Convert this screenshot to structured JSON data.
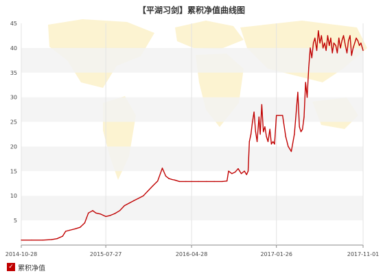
{
  "chart_data": {
    "type": "line",
    "title": "【平湖习剑】累积净值曲线图",
    "xlabel": "",
    "ylabel": "",
    "ylim": [
      0,
      45
    ],
    "y_ticks": [
      5,
      10,
      15,
      20,
      25,
      30,
      35,
      40,
      45
    ],
    "x_ticks": [
      "2014-10-28",
      "2015-07-27",
      "2016-04-28",
      "2017-01-26",
      "2017-11-01"
    ],
    "grid": "alternating horizontal bands",
    "legend_position": "bottom-left",
    "series": [
      {
        "name": "累积净值",
        "color": "#c00000",
        "x": [
          "2014-10-28",
          "2014-12-01",
          "2015-01-05",
          "2015-02-02",
          "2015-02-20",
          "2015-03-10",
          "2015-03-20",
          "2015-04-01",
          "2015-04-20",
          "2015-05-05",
          "2015-05-20",
          "2015-06-01",
          "2015-06-15",
          "2015-06-25",
          "2015-07-10",
          "2015-07-27",
          "2015-08-10",
          "2015-08-25",
          "2015-09-10",
          "2015-09-25",
          "2015-10-10",
          "2015-10-25",
          "2015-11-10",
          "2015-11-25",
          "2015-12-10",
          "2015-12-25",
          "2016-01-10",
          "2016-01-25",
          "2016-02-05",
          "2016-02-15",
          "2016-02-25",
          "2016-03-05",
          "2016-03-20",
          "2016-04-10",
          "2016-04-28",
          "2016-05-20",
          "2016-06-15",
          "2016-07-10",
          "2016-08-05",
          "2016-08-20",
          "2016-08-25",
          "2016-09-05",
          "2016-09-15",
          "2016-09-25",
          "2016-10-05",
          "2016-10-15",
          "2016-10-22",
          "2016-10-27",
          "2016-10-31",
          "2016-11-05",
          "2016-11-10",
          "2016-11-15",
          "2016-11-20",
          "2016-11-25",
          "2016-12-01",
          "2016-12-05",
          "2016-12-10",
          "2016-12-15",
          "2016-12-20",
          "2016-12-25",
          "2016-12-30",
          "2017-01-05",
          "2017-01-10",
          "2017-01-15",
          "2017-01-20",
          "2017-01-26",
          "2017-02-01",
          "2017-02-05",
          "2017-02-15",
          "2017-02-25",
          "2017-03-05",
          "2017-03-15",
          "2017-03-25",
          "2017-04-05",
          "2017-04-10",
          "2017-04-15",
          "2017-04-20",
          "2017-04-25",
          "2017-04-30",
          "2017-05-05",
          "2017-05-10",
          "2017-05-15",
          "2017-05-20",
          "2017-05-25",
          "2017-05-30",
          "2017-06-05",
          "2017-06-10",
          "2017-06-15",
          "2017-06-20",
          "2017-06-25",
          "2017-06-30",
          "2017-07-05",
          "2017-07-10",
          "2017-07-15",
          "2017-07-20",
          "2017-07-25",
          "2017-07-30",
          "2017-08-05",
          "2017-08-10",
          "2017-08-15",
          "2017-08-20",
          "2017-08-25",
          "2017-08-30",
          "2017-09-05",
          "2017-09-10",
          "2017-09-15",
          "2017-09-20",
          "2017-09-25",
          "2017-09-30",
          "2017-10-05",
          "2017-10-10",
          "2017-10-15",
          "2017-10-20",
          "2017-10-25",
          "2017-11-01"
        ],
        "values": [
          1.0,
          1.0,
          1.0,
          1.1,
          1.3,
          1.8,
          2.8,
          3.0,
          3.3,
          3.6,
          4.5,
          6.5,
          7.0,
          6.5,
          6.3,
          5.8,
          6.0,
          6.4,
          7.0,
          8.0,
          8.5,
          9.0,
          9.5,
          10.0,
          11.0,
          12.0,
          13.0,
          15.6,
          14.0,
          13.5,
          13.3,
          13.2,
          12.9,
          12.9,
          12.9,
          12.9,
          12.9,
          12.9,
          12.9,
          13.0,
          15.0,
          14.5,
          14.8,
          15.5,
          14.5,
          15.0,
          14.3,
          15.0,
          21.0,
          22.5,
          25.0,
          27.0,
          23.0,
          21.0,
          26.0,
          22.5,
          28.5,
          23.0,
          24.0,
          22.0,
          21.0,
          23.5,
          20.5,
          21.0,
          20.5,
          26.3,
          26.3,
          26.3,
          26.3,
          22.0,
          20.0,
          19.0,
          22.5,
          31.0,
          24.0,
          23.0,
          23.5,
          26.0,
          33.0,
          30.0,
          36.0,
          40.0,
          38.0,
          41.0,
          42.0,
          39.5,
          43.5,
          41.0,
          42.5,
          40.0,
          41.0,
          39.5,
          42.5,
          40.5,
          42.0,
          39.0,
          41.0,
          40.5,
          39.0,
          42.0,
          40.0,
          41.5,
          42.5,
          40.5,
          39.0,
          41.5,
          42.5,
          38.5,
          40.0,
          41.0,
          42.0,
          41.5,
          40.5,
          41.0,
          39.5
        ]
      }
    ]
  }
}
